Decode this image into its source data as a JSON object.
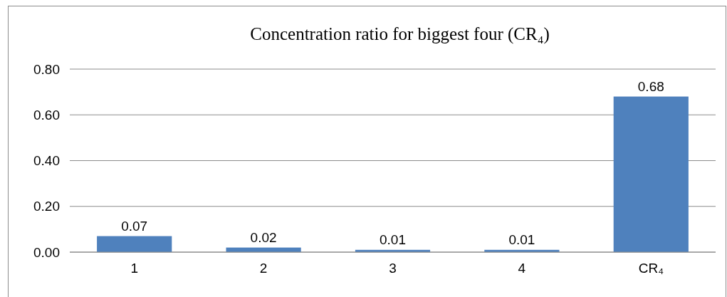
{
  "chart_data": {
    "type": "bar",
    "title": "Concentration ratio for biggest four (CR₄)",
    "categories": [
      "1",
      "2",
      "3",
      "4",
      "CR₄"
    ],
    "values": [
      0.07,
      0.02,
      0.01,
      0.01,
      0.68
    ],
    "value_labels": [
      "0.07",
      "0.02",
      "0.01",
      "0.01",
      "0.68"
    ],
    "color": "#4f81bd",
    "ylim": [
      0,
      0.8
    ],
    "yticks": [
      {
        "value": 0,
        "label": "0.00"
      },
      {
        "value": 0.2,
        "label": "0.20"
      },
      {
        "value": 0.4,
        "label": "0.40"
      },
      {
        "value": 0.6,
        "label": "0.60"
      },
      {
        "value": 0.8,
        "label": "0.80"
      }
    ],
    "grid": "y"
  }
}
